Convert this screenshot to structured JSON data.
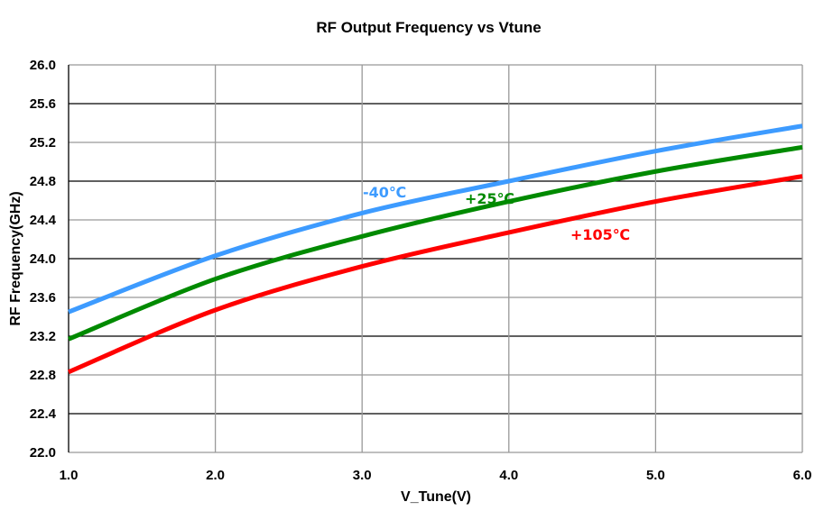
{
  "chart_data": {
    "type": "line",
    "title": "RF Output Frequency vs Vtune",
    "xlabel": "V_Tune(V)",
    "ylabel": "RF Frequency(GHz)",
    "xlim": [
      1.0,
      6.0
    ],
    "ylim": [
      22.0,
      26.0
    ],
    "xticks": [
      "1.0",
      "2.0",
      "3.0",
      "4.0",
      "5.0",
      "6.0"
    ],
    "yticks": [
      "22.0",
      "22.4",
      "22.8",
      "23.2",
      "23.6",
      "24.0",
      "24.4",
      "24.8",
      "25.2",
      "25.6",
      "26.0"
    ],
    "grid": true,
    "x": [
      1.0,
      2.0,
      3.0,
      4.0,
      5.0,
      6.0
    ],
    "series": [
      {
        "name": "-40℃",
        "color": "#3d9bff",
        "values": [
          23.45,
          24.03,
          24.47,
          24.8,
          25.11,
          25.37
        ]
      },
      {
        "name": "+25℃",
        "color": "#008a00",
        "values": [
          23.17,
          23.79,
          24.23,
          24.59,
          24.9,
          25.15
        ]
      },
      {
        "name": "+105℃",
        "color": "#ff0000",
        "values": [
          22.83,
          23.47,
          23.92,
          24.27,
          24.59,
          24.85
        ]
      }
    ]
  }
}
